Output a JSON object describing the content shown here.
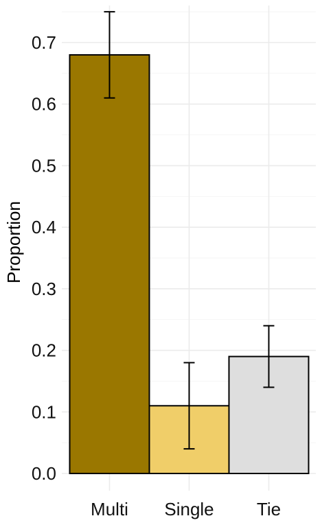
{
  "chart_data": {
    "type": "bar",
    "categories": [
      "Multi",
      "Single",
      "Tie"
    ],
    "values": [
      0.68,
      0.11,
      0.19
    ],
    "error_low": [
      0.61,
      0.04,
      0.14
    ],
    "error_high": [
      0.75,
      0.18,
      0.24
    ],
    "colors": [
      "#9a7700",
      "#f0ce69",
      "#dedede"
    ],
    "ylabel": "Proportion",
    "xlabel": "",
    "ylim": [
      0,
      0.75
    ],
    "yticks": [
      0.0,
      0.1,
      0.2,
      0.3,
      0.4,
      0.5,
      0.6,
      0.7
    ],
    "ytick_labels": [
      "0.0",
      "0.1",
      "0.2",
      "0.3",
      "0.4",
      "0.5",
      "0.6",
      "0.7"
    ],
    "grid": true,
    "legend": "none"
  }
}
